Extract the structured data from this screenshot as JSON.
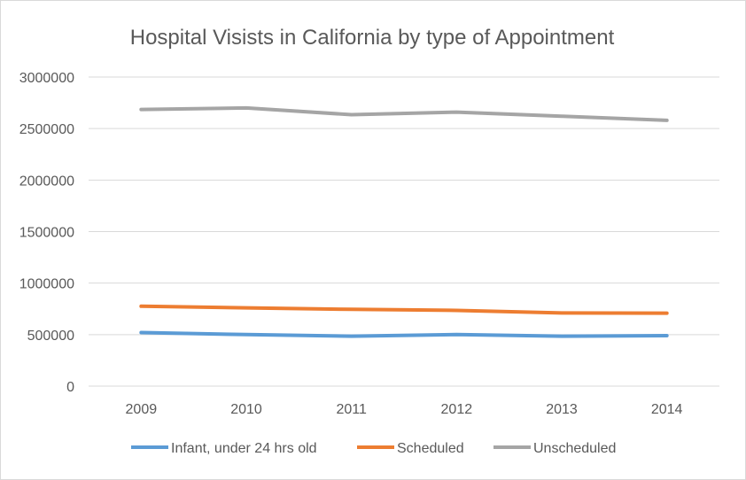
{
  "chart_data": {
    "type": "line",
    "title": "Hospital Visists in California by type of Appointment",
    "xlabel": "",
    "ylabel": "",
    "categories": [
      "2009",
      "2010",
      "2011",
      "2012",
      "2013",
      "2014"
    ],
    "ylim": [
      0,
      3000000
    ],
    "yticks": [
      "0",
      "500000",
      "1000000",
      "1500000",
      "2000000",
      "2500000",
      "3000000"
    ],
    "grid": true,
    "legend_position": "bottom",
    "series": [
      {
        "name": "Infant, under 24 hrs old",
        "color": "#5b9bd5",
        "values": [
          520000,
          500000,
          485000,
          500000,
          485000,
          490000
        ]
      },
      {
        "name": "Scheduled",
        "color": "#ed7d31",
        "values": [
          775000,
          760000,
          745000,
          735000,
          710000,
          708000
        ]
      },
      {
        "name": "Unscheduled",
        "color": "#a5a5a5",
        "values": [
          2685000,
          2700000,
          2635000,
          2660000,
          2620000,
          2580000
        ]
      }
    ]
  }
}
